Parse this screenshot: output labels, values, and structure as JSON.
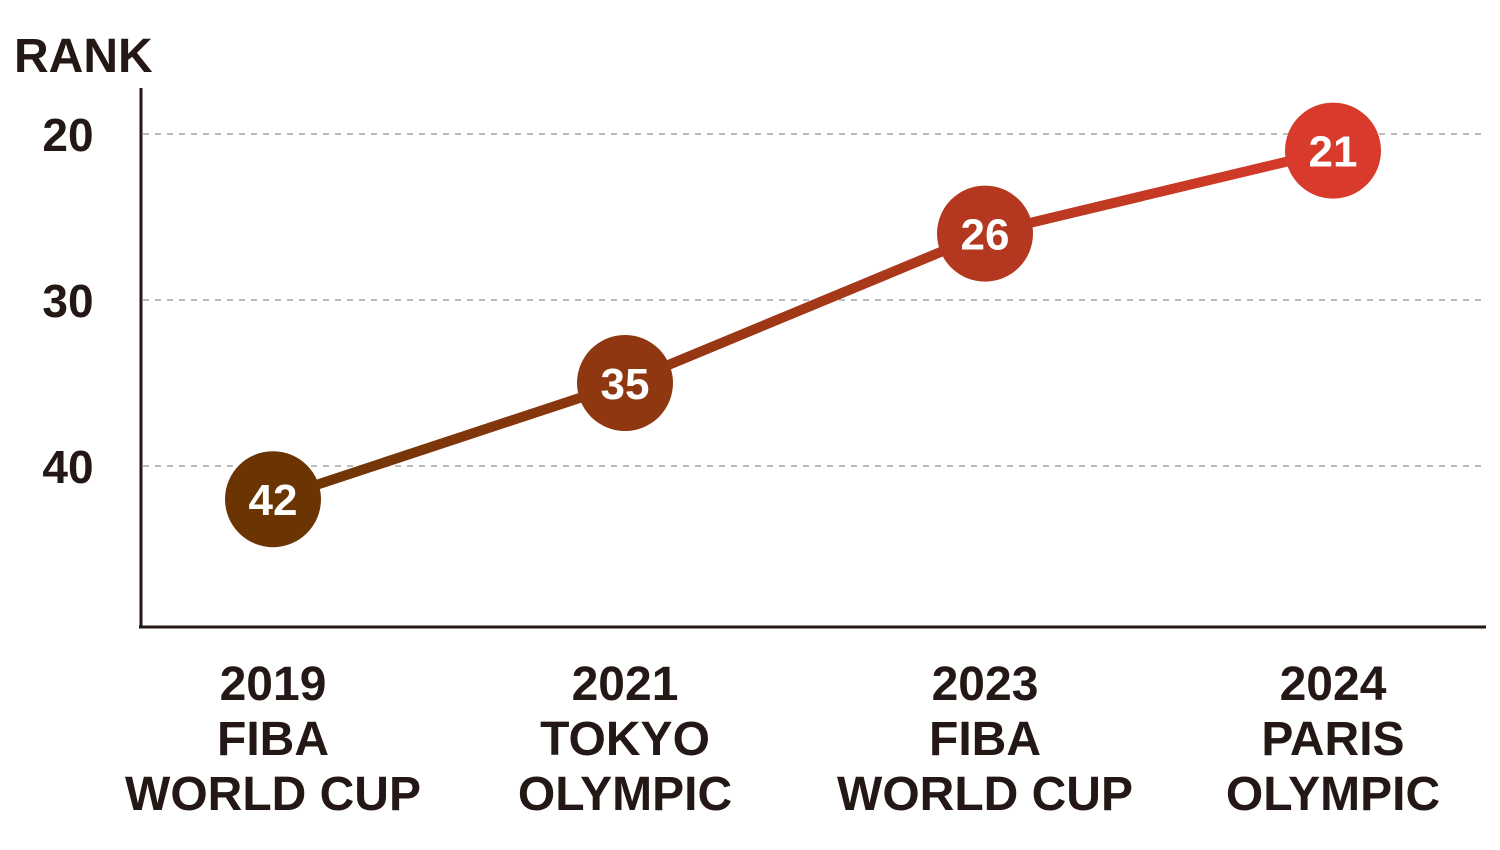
{
  "chart_data": {
    "type": "line",
    "ylabel": "RANK",
    "y_inverted": true,
    "ylim": [
      17,
      49
    ],
    "yticks": [
      20,
      30,
      40
    ],
    "grid": "horizontal dashed",
    "categories": [
      [
        "2019",
        "FIBA",
        "WORLD CUP"
      ],
      [
        "2021",
        "TOKYO",
        "OLYMPIC"
      ],
      [
        "2023",
        "FIBA",
        "WORLD CUP"
      ],
      [
        "2024",
        "PARIS",
        "OLYMPIC"
      ]
    ],
    "values": [
      42,
      35,
      26,
      21
    ],
    "colors": {
      "start": "#6b3503",
      "end": "#d83a2c",
      "axis": "#231815",
      "grid": "#bdbdbd"
    }
  }
}
